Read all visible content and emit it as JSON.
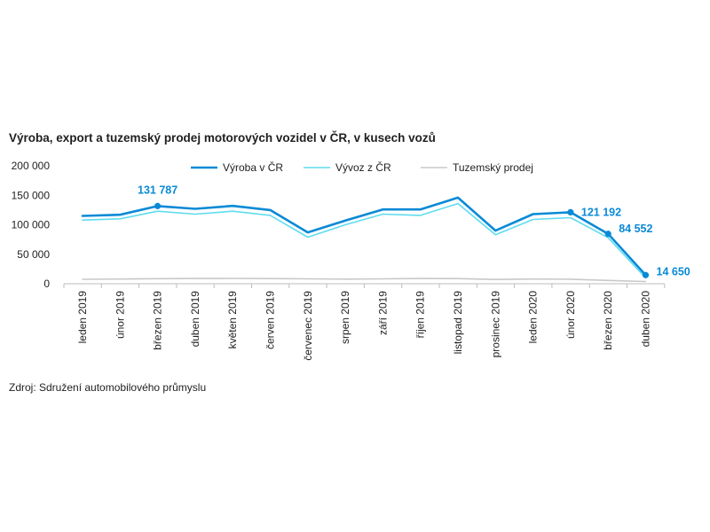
{
  "chart_data": {
    "type": "line",
    "title": "Výroba, export a tuzemský prodej motorových vozidel v ČR, v kusech vozů",
    "source": "Zdroj: Sdružení automobilového průmyslu",
    "categories": [
      "leden 2019",
      "únor 2019",
      "březen 2019",
      "duben 2019",
      "květen 2019",
      "červen 2019",
      "červenec 2019",
      "srpen 2019",
      "září 2019",
      "říjen 2019",
      "listopad 2019",
      "prosinec 2019",
      "leden 2020",
      "únor 2020",
      "březen 2020",
      "duben 2020"
    ],
    "ylim": [
      0,
      200000
    ],
    "yticks": [
      0,
      50000,
      100000,
      150000,
      200000
    ],
    "ytick_labels": [
      "0",
      "50 000",
      "100 000",
      "150 000",
      "200 000"
    ],
    "legend_position": "top",
    "grid": false,
    "series": [
      {
        "name": "Výroba v ČR",
        "color": "#0a8ad6",
        "values": [
          115000,
          117000,
          131787,
          127000,
          132000,
          125000,
          87000,
          107000,
          126000,
          126000,
          146000,
          90000,
          118000,
          121192,
          84552,
          14650
        ]
      },
      {
        "name": "Vývoz z ČR",
        "color": "#5fdcef",
        "values": [
          108000,
          110000,
          123000,
          118000,
          123000,
          116000,
          79000,
          100000,
          118000,
          116000,
          136000,
          83000,
          109000,
          112000,
          78000,
          10000
        ]
      },
      {
        "name": "Tuzemský prodej",
        "color": "#c8c8c8",
        "values": [
          7500,
          8000,
          8500,
          8800,
          9000,
          8700,
          8200,
          7800,
          8300,
          8900,
          8700,
          7200,
          8000,
          7600,
          5500,
          3700
        ]
      }
    ],
    "annotations": [
      {
        "series": 0,
        "index": 2,
        "label": "131 787"
      },
      {
        "series": 0,
        "index": 13,
        "label": "121 192"
      },
      {
        "series": 0,
        "index": 14,
        "label": "84 552"
      },
      {
        "series": 0,
        "index": 15,
        "label": "14 650"
      }
    ]
  }
}
